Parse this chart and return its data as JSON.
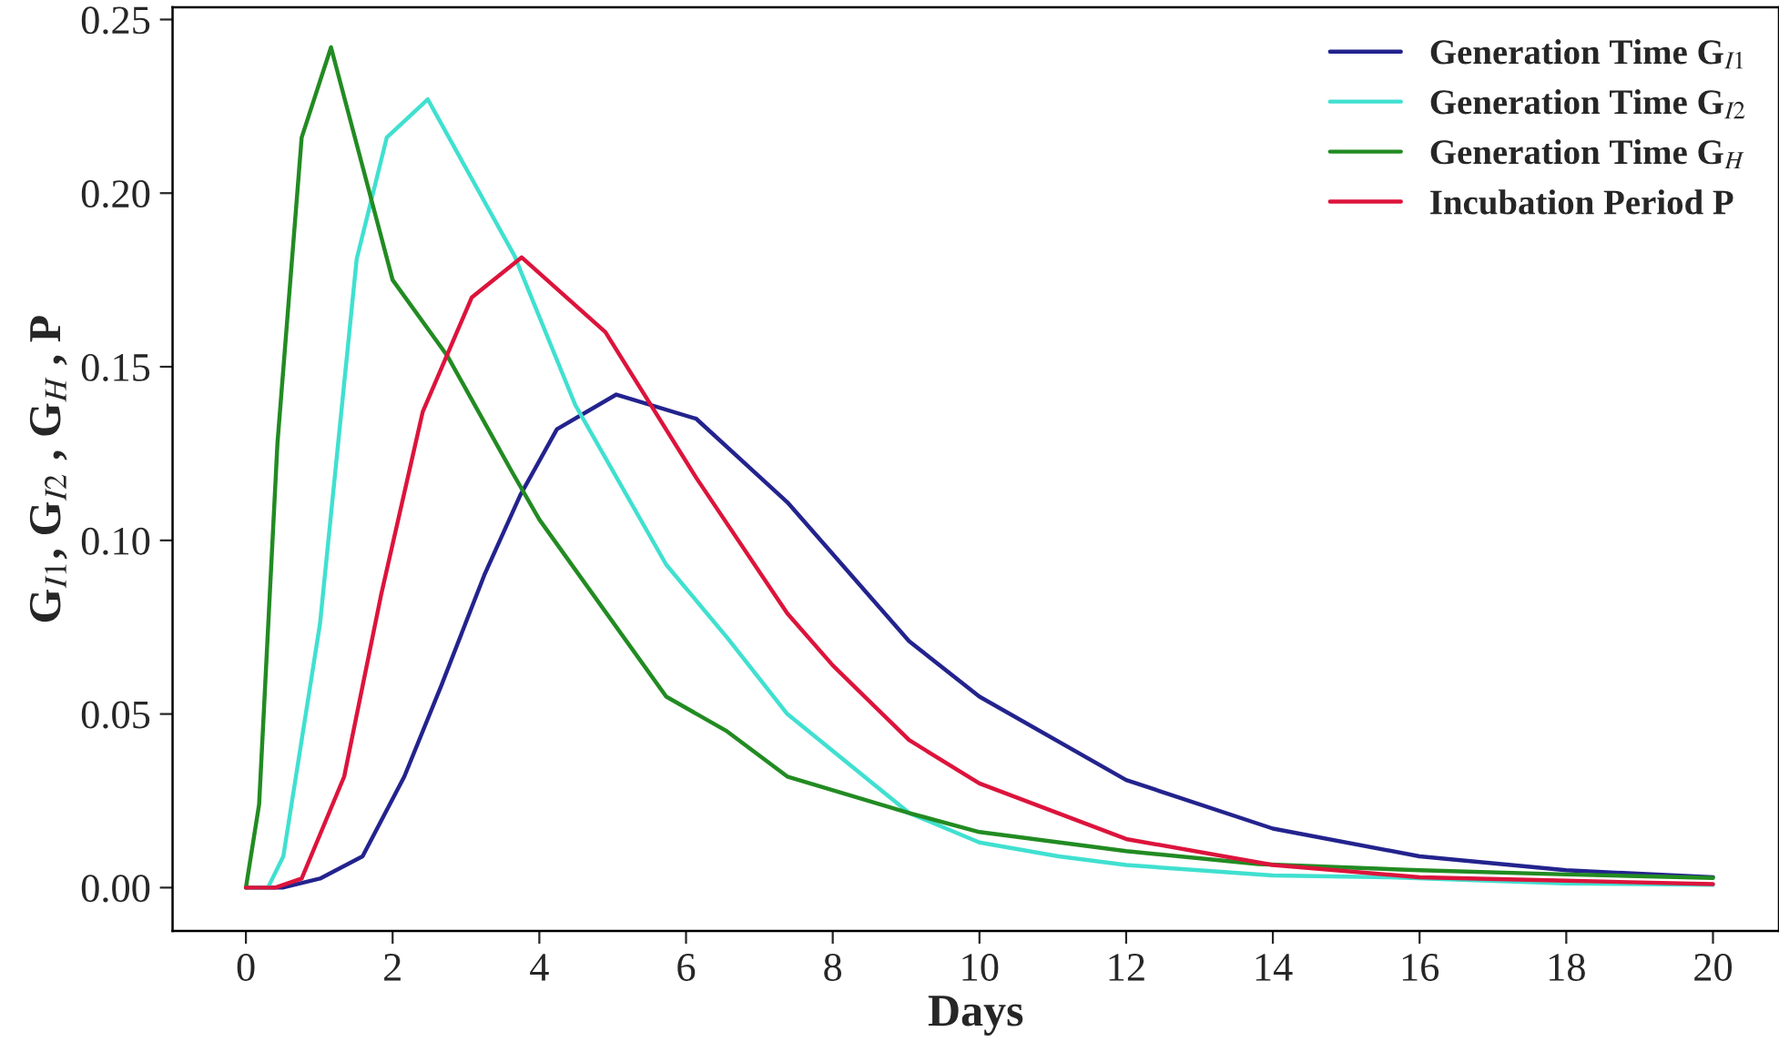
{
  "chart_data": {
    "type": "line",
    "xlabel": "Days",
    "ylabel": "G$_{I1}$, G$_{I2}$ , G$_{H}$ , P",
    "xlim": [
      -1.0,
      20.9
    ],
    "ylim": [
      -0.0125,
      0.2535
    ],
    "xticks": [
      0,
      2,
      4,
      6,
      8,
      10,
      12,
      14,
      16,
      18,
      20
    ],
    "yticks": [
      {
        "value": 0,
        "label": "0.00"
      },
      {
        "value": 0.05,
        "label": "0.05"
      },
      {
        "value": 0.1,
        "label": "0.10"
      },
      {
        "value": 0.15,
        "label": "0.15"
      },
      {
        "value": 0.2,
        "label": "0.20"
      },
      {
        "value": 0.25,
        "label": "0.25"
      }
    ],
    "grid": false,
    "legend": "top right",
    "line_style": "solid",
    "marker": "none",
    "series": [
      {
        "name": "Generation Time G$_{I1}$",
        "color": "#23238e",
        "x": [
          0,
          0.5,
          1.01,
          1.59,
          2.16,
          2.66,
          3.25,
          3.74,
          4.24,
          5.05,
          6.14,
          7.38,
          9.04,
          10,
          12,
          14,
          16,
          18,
          20
        ],
        "values": [
          0,
          0,
          0.0026,
          0.009,
          0.032,
          0.058,
          0.09,
          0.113,
          0.132,
          0.142,
          0.135,
          0.111,
          0.071,
          0.055,
          0.031,
          0.017,
          0.009,
          0.005,
          0.003
        ]
      },
      {
        "name": "Generation Time G$_{I2}$",
        "color": "#40e0d0",
        "x": [
          0,
          0.3,
          0.51,
          1.01,
          1.51,
          1.92,
          2.48,
          3.66,
          4.49,
          5.73,
          6.56,
          7.38,
          9.04,
          10,
          11.08,
          12,
          14,
          15.6,
          18,
          20
        ],
        "values": [
          0,
          0,
          0.009,
          0.076,
          0.181,
          0.216,
          0.227,
          0.182,
          0.139,
          0.093,
          0.072,
          0.05,
          0.0215,
          0.013,
          0.009,
          0.0065,
          0.0035,
          0.003,
          0.0012,
          0.0008
        ]
      },
      {
        "name": "Generation Time G$_{H}$",
        "color": "#228b22",
        "x": [
          0,
          0.18,
          0.43,
          0.76,
          1.16,
          2,
          2.75,
          3.62,
          4,
          5.73,
          6.56,
          7.38,
          9.04,
          10,
          12,
          13.8,
          16,
          18,
          20
        ],
        "values": [
          0,
          0.024,
          0.128,
          0.216,
          0.242,
          0.175,
          0.153,
          0.12,
          0.106,
          0.055,
          0.045,
          0.032,
          0.0215,
          0.016,
          0.0105,
          0.0068,
          0.005,
          0.0038,
          0.0028
        ]
      },
      {
        "name": "Incubation Period P",
        "color": "#dc143c",
        "x": [
          0,
          0.4,
          0.76,
          1.34,
          1.84,
          2.41,
          3.08,
          3.76,
          4.9,
          6.14,
          7.38,
          8,
          9.04,
          10,
          12,
          14,
          16,
          18,
          20
        ],
        "values": [
          0,
          0,
          0.0026,
          0.032,
          0.084,
          0.137,
          0.17,
          0.1815,
          0.16,
          0.118,
          0.079,
          0.064,
          0.0425,
          0.03,
          0.014,
          0.0065,
          0.003,
          0.002,
          0.001
        ]
      }
    ]
  }
}
